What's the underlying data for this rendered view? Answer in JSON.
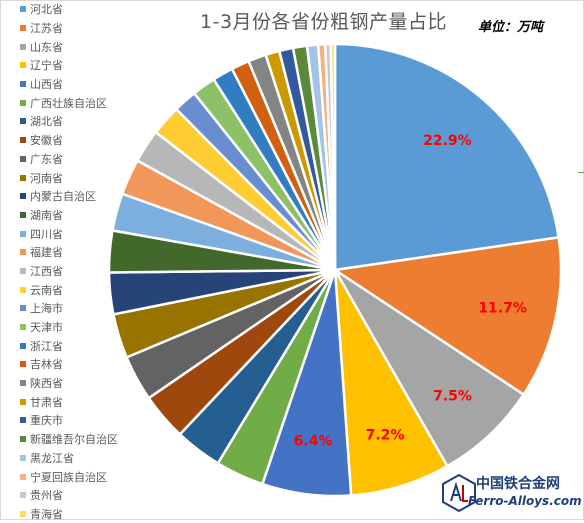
{
  "chart_data": {
    "type": "pie",
    "title": "1-3月份各省份粗钢产量占比",
    "unit_note": "单位：万吨",
    "series": [
      {
        "name": "河北省",
        "value": 22.9,
        "color": "#5b9bd5"
      },
      {
        "name": "江苏省",
        "value": 11.7,
        "color": "#ed7d31"
      },
      {
        "name": "山东省",
        "value": 7.5,
        "color": "#a5a5a5"
      },
      {
        "name": "辽宁省",
        "value": 7.2,
        "color": "#ffc000"
      },
      {
        "name": "山西省",
        "value": 6.4,
        "color": "#4472c4"
      },
      {
        "name": "广西壮族自治区",
        "value": 3.5,
        "color": "#70ad47"
      },
      {
        "name": "湖北省",
        "value": 3.4,
        "color": "#255e91"
      },
      {
        "name": "安徽省",
        "value": 3.4,
        "color": "#9e480e"
      },
      {
        "name": "广东省",
        "value": 3.3,
        "color": "#636363"
      },
      {
        "name": "河南省",
        "value": 3.2,
        "color": "#997300"
      },
      {
        "name": "内蒙古自治区",
        "value": 3.0,
        "color": "#264478"
      },
      {
        "name": "湖南省",
        "value": 3.0,
        "color": "#43682b"
      },
      {
        "name": "四川省",
        "value": 2.7,
        "color": "#7cafdd"
      },
      {
        "name": "福建省",
        "value": 2.6,
        "color": "#f1975a"
      },
      {
        "name": "江西省",
        "value": 2.4,
        "color": "#b7b7b7"
      },
      {
        "name": "云南省",
        "value": 2.2,
        "color": "#ffcd33"
      },
      {
        "name": "上海市",
        "value": 1.7,
        "color": "#698ed0"
      },
      {
        "name": "天津市",
        "value": 1.7,
        "color": "#8cc168"
      },
      {
        "name": "浙江省",
        "value": 1.5,
        "color": "#327dc2"
      },
      {
        "name": "吉林省",
        "value": 1.3,
        "color": "#d26012"
      },
      {
        "name": "陕西省",
        "value": 1.3,
        "color": "#848484"
      },
      {
        "name": "甘肃省",
        "value": 1.0,
        "color": "#cc9a00"
      },
      {
        "name": "重庆市",
        "value": 1.0,
        "color": "#335aa1"
      },
      {
        "name": "新疆维吾尔自治区",
        "value": 1.0,
        "color": "#5a8a39"
      },
      {
        "name": "黑龙江省",
        "value": 0.8,
        "color": "#a2c4e6"
      },
      {
        "name": "宁夏回族自治区",
        "value": 0.5,
        "color": "#f4b183"
      },
      {
        "name": "贵州省",
        "value": 0.4,
        "color": "#c9c9c9"
      },
      {
        "name": "青海省",
        "value": 0.3,
        "color": "#ffd966"
      }
    ],
    "data_labels": [
      {
        "index": 0,
        "text": "22.9%"
      },
      {
        "index": 1,
        "text": "11.7%"
      },
      {
        "index": 2,
        "text": "7.5%"
      },
      {
        "index": 3,
        "text": "7.2%"
      },
      {
        "index": 4,
        "text": "6.4%"
      }
    ],
    "legend_position": "left"
  },
  "watermark": {
    "name_cn": "中国铁合金网",
    "url": "Ferro-Alloys.com"
  }
}
